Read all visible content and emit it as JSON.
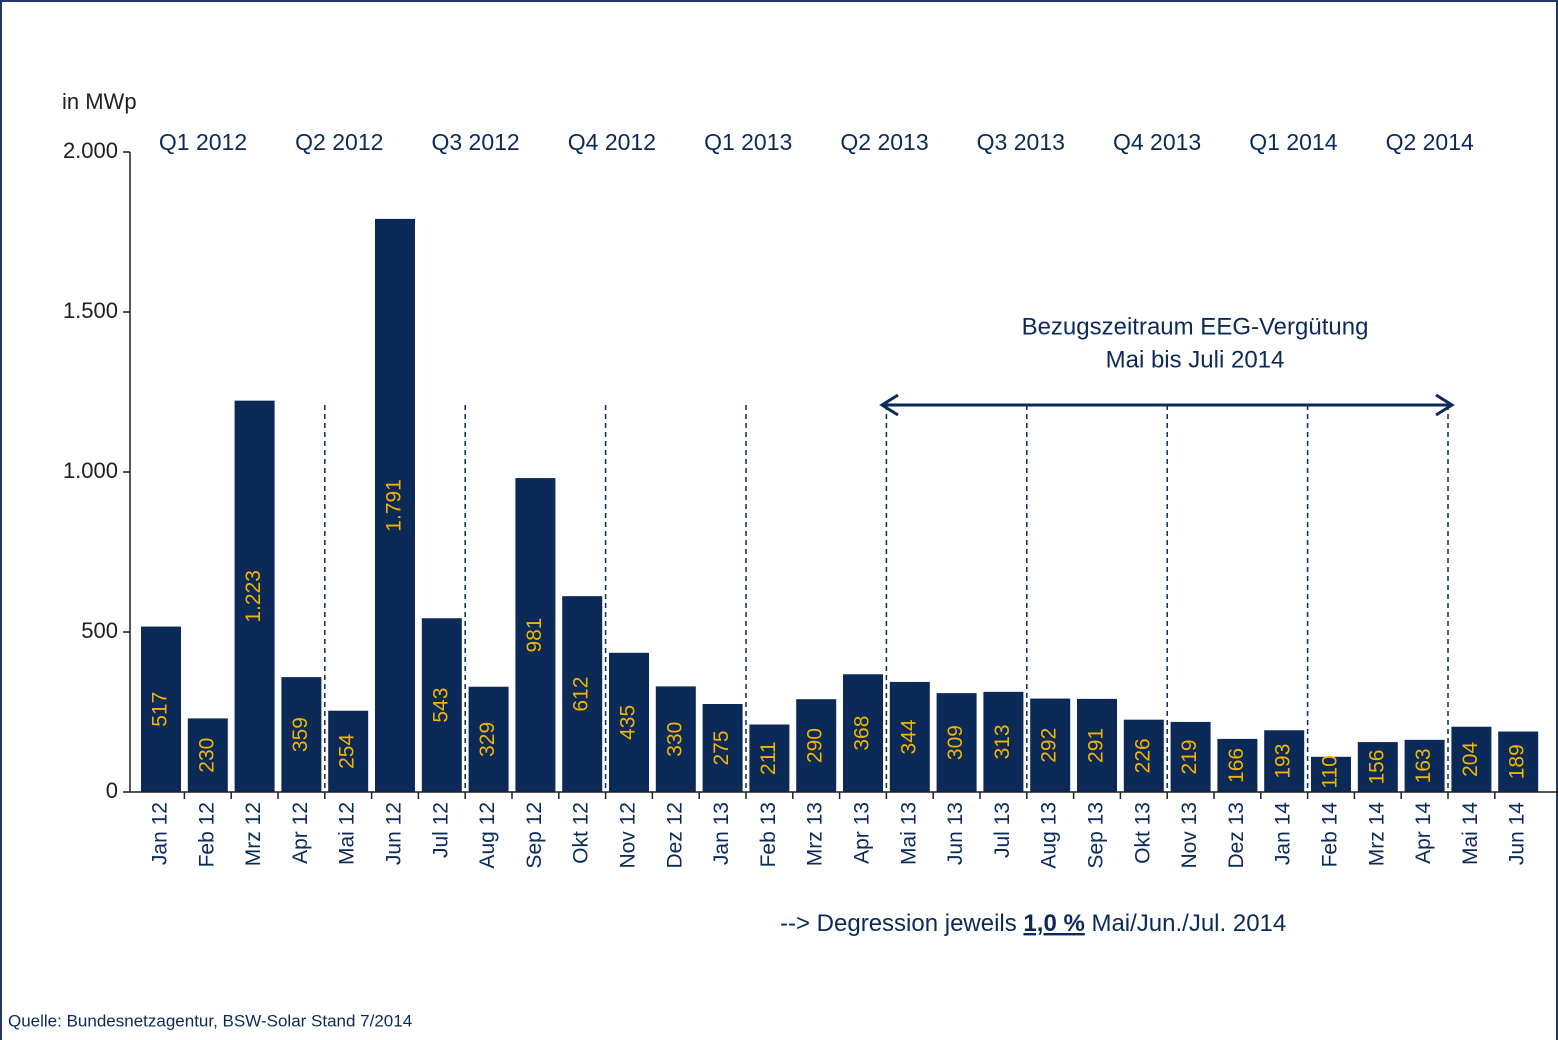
{
  "chart_data": {
    "type": "bar",
    "y_axis_label": "in MWp",
    "categories": [
      "Jan 12",
      "Feb 12",
      "Mrz 12",
      "Apr 12",
      "Mai 12",
      "Jun 12",
      "Jul 12",
      "Aug 12",
      "Sep 12",
      "Okt 12",
      "Nov 12",
      "Dez 12",
      "Jan 13",
      "Feb 13",
      "Mrz 13",
      "Apr 13",
      "Mai 13",
      "Jun 13",
      "Jul 13",
      "Aug 13",
      "Sep 13",
      "Okt 13",
      "Nov 13",
      "Dez 13",
      "Jan 14",
      "Feb 14",
      "Mrz 14",
      "Apr 14",
      "Mai 14",
      "Jun 14"
    ],
    "values": [
      517,
      230,
      1223,
      359,
      254,
      1791,
      543,
      329,
      981,
      612,
      435,
      330,
      275,
      211,
      290,
      368,
      344,
      309,
      313,
      292,
      291,
      226,
      219,
      166,
      193,
      110,
      156,
      163,
      204,
      189
    ],
    "value_labels": [
      "517",
      "230",
      "1.223",
      "359",
      "254",
      "1.791",
      "543",
      "329",
      "981",
      "612",
      "435",
      "330",
      "275",
      "211",
      "290",
      "368",
      "344",
      "309",
      "313",
      "292",
      "291",
      "226",
      "219",
      "166",
      "193",
      "110",
      "156",
      "163",
      "204",
      "189"
    ],
    "color": "#0b2a57",
    "label_color": "#f2b400",
    "ylim": [
      0,
      2000
    ],
    "yticks": [
      0,
      500,
      {
        "value": 1000,
        "label": "1.000"
      },
      {
        "value": 1500,
        "label": "1.500"
      },
      {
        "value": 2000,
        "label": "2.000"
      }
    ],
    "quarters": [
      "Q1 2012",
      "Q2 2012",
      "Q3 2012",
      "Q4 2012",
      "Q1 2013",
      "Q2 2013",
      "Q3 2013",
      "Q4 2013",
      "Q1 2014",
      "Q2 2014"
    ],
    "annotation_period": [
      "Bezugszeitraum  EEG-Vergütung",
      "Mai bis Juli 2014"
    ],
    "annotation_degression": [
      "--> Degression jeweils ",
      "1,0 %",
      " Mai/Jun./Jul.  2014"
    ],
    "source": "Quelle: Bundesnetzagentur, BSW-Solar Stand 7/2014"
  }
}
